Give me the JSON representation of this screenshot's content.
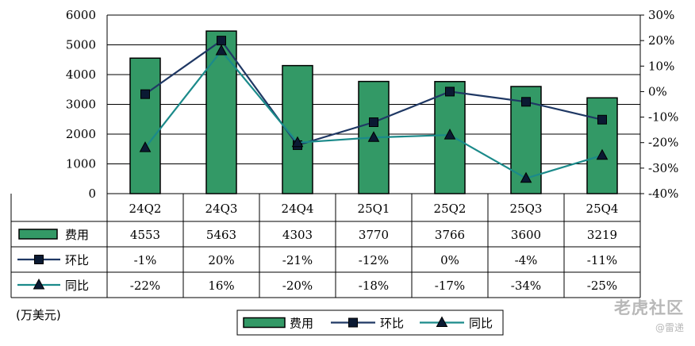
{
  "chart_data": {
    "type": "bar",
    "categories": [
      "24Q2",
      "24Q3",
      "24Q4",
      "25Q1",
      "25Q2",
      "25Q3",
      "25Q4"
    ],
    "series": [
      {
        "name": "费用",
        "kind": "bar",
        "axis": "left",
        "values": [
          4553,
          5463,
          4303,
          3770,
          3766,
          3600,
          3219
        ],
        "labels": [
          "4553",
          "5463",
          "4303",
          "3770",
          "3766",
          "3600",
          "3219"
        ],
        "color": "#339966"
      },
      {
        "name": "环比",
        "kind": "line",
        "axis": "right",
        "marker": "square",
        "values": [
          -1,
          20,
          -21,
          -12,
          0,
          -4,
          -11
        ],
        "labels": [
          "-1%",
          "20%",
          "-21%",
          "-12%",
          "0%",
          "-4%",
          "-11%"
        ],
        "color": "#1F3864"
      },
      {
        "name": "同比",
        "kind": "line",
        "axis": "right",
        "marker": "triangle",
        "values": [
          -22,
          16,
          -20,
          -18,
          -17,
          -34,
          -25
        ],
        "labels": [
          "-22%",
          "16%",
          "-20%",
          "-18%",
          "-17%",
          "-34%",
          "-25%"
        ],
        "color": "#1B8A8A"
      }
    ],
    "ylim_left": [
      0,
      6000
    ],
    "yticks_left": [
      "0",
      "1000",
      "2000",
      "3000",
      "4000",
      "5000",
      "6000"
    ],
    "ylim_right": [
      -40,
      30
    ],
    "yticks_right": [
      "-40%",
      "-30%",
      "-20%",
      "-10%",
      "0%",
      "10%",
      "20%",
      "30%"
    ],
    "grid": true,
    "legend_position": "bottom-center",
    "unit_label": "(万美元)",
    "table_below": true
  },
  "watermark": {
    "main": "老虎社区",
    "sub": "@雷递"
  }
}
